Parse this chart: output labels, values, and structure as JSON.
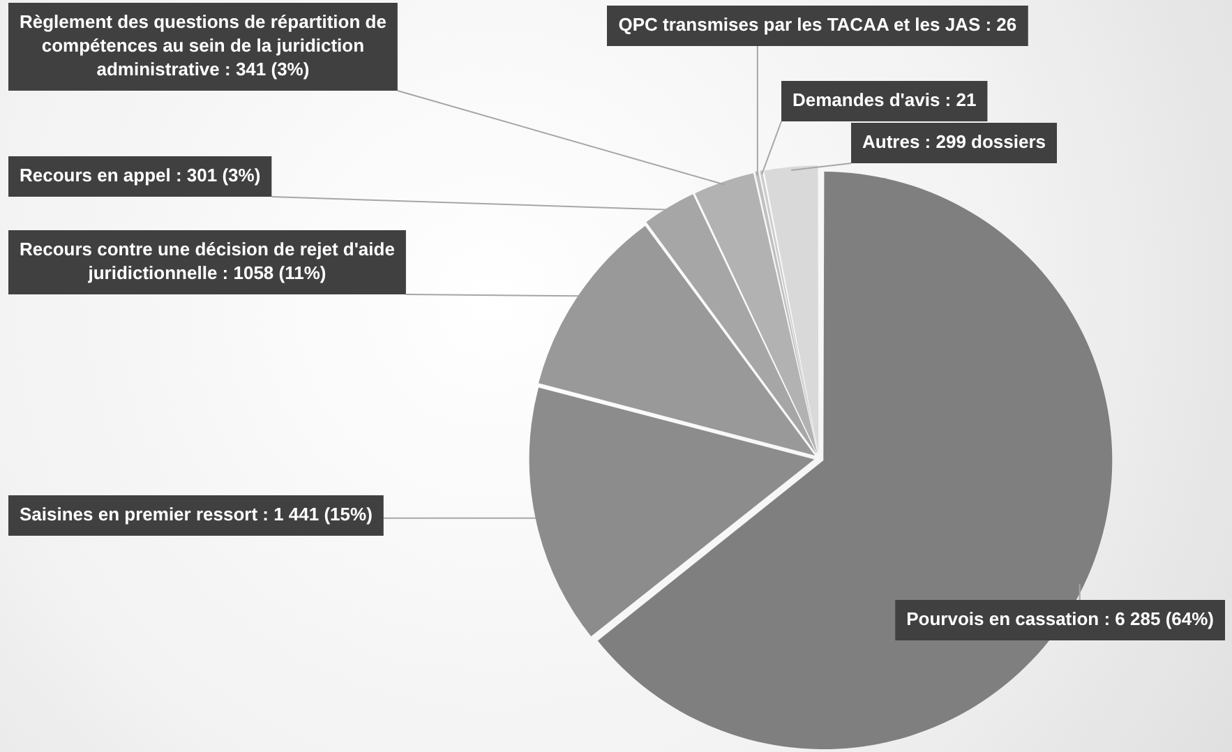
{
  "chart_data": {
    "type": "pie",
    "categories": [
      "Pourvois en cassation",
      "Saisines en premier ressort",
      "Recours contre une décision de rejet d'aide juridictionnelle",
      "Recours en appel",
      "Règlement des questions de répartition de compétences au sein de la juridiction administrative",
      "QPC transmises par les TACAA et les JAS",
      "Demandes d'avis",
      "Autres"
    ],
    "values": [
      6285,
      1441,
      1058,
      301,
      341,
      26,
      21,
      299
    ],
    "value_labels": [
      "6 285 (64%)",
      "1 441 (15%)",
      "1058 (11%)",
      "301 (3%)",
      "341 (3%)",
      "26",
      "21",
      "299 dossiers"
    ],
    "colors": [
      "#7f7f7f",
      "#8c8c8c",
      "#999999",
      "#a6a6a6",
      "#b2b2b2",
      "#bfbfbf",
      "#cbcbcb",
      "#d9d9d9"
    ],
    "legend": false
  }
}
